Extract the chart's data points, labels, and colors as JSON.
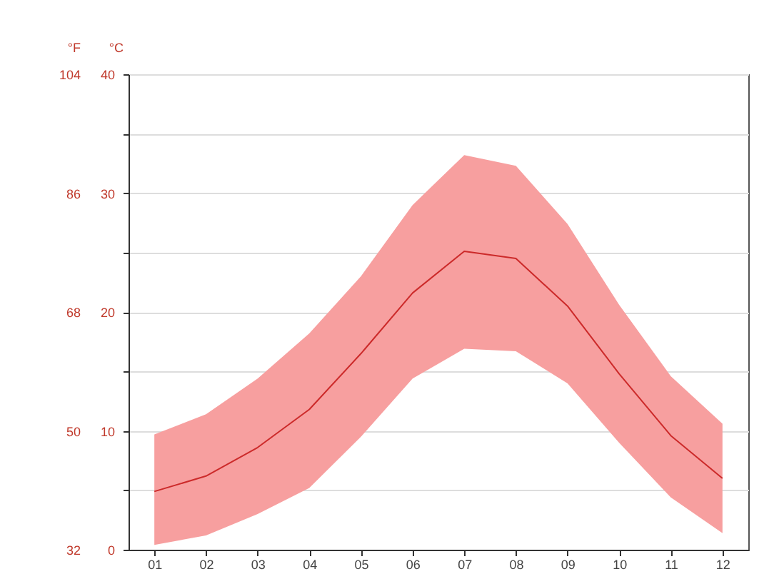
{
  "chart_data": {
    "type": "line",
    "ylabel": "°C",
    "y2label": "°F",
    "categories": [
      "01",
      "02",
      "03",
      "04",
      "05",
      "06",
      "07",
      "08",
      "09",
      "10",
      "11",
      "12"
    ],
    "series": [
      {
        "color": "#cc2a2a",
        "values": [
          4.9,
          6.2,
          8.6,
          11.8,
          16.5,
          21.6,
          25.1,
          24.5,
          20.5,
          14.8,
          9.6,
          6.0
        ],
        "lower": [
          0.4,
          1.2,
          3.0,
          5.2,
          9.5,
          14.4,
          16.9,
          16.7,
          14.0,
          9.0,
          4.4,
          1.4
        ],
        "upper": [
          9.7,
          11.4,
          14.4,
          18.2,
          23.0,
          29.0,
          33.2,
          32.3,
          27.4,
          20.6,
          14.6,
          10.6
        ]
      }
    ],
    "ylim": [
      0,
      40
    ],
    "yticks": [
      0,
      {
        "value": 5,
        "label": null
      },
      10,
      {
        "value": 15,
        "label": null
      },
      20,
      {
        "value": 25,
        "label": null
      },
      30,
      {
        "value": 35,
        "label": null
      },
      40
    ],
    "y2lim": [
      32,
      104
    ],
    "y2ticks": [
      32,
      50,
      68,
      86,
      104
    ],
    "grid": "y",
    "marker": "none",
    "line_style": "solid"
  }
}
